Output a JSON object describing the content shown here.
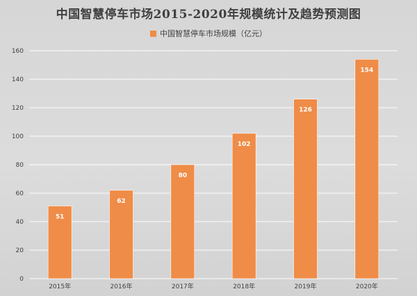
{
  "chart_data": {
    "type": "bar",
    "title": "中国智慧停车市场2015-2020年规模统计及趋势预测图",
    "categories": [
      "2015年",
      "2016年",
      "2017年",
      "2018年",
      "2019年",
      "2020年"
    ],
    "series": [
      {
        "name": "中国智慧停车市场规模（亿元）",
        "values": [
          51,
          62,
          80,
          102,
          126,
          154
        ],
        "color": "#ef8c47"
      }
    ],
    "ylim": [
      0,
      160
    ],
    "yticks": [
      0,
      20,
      40,
      60,
      80,
      100,
      120,
      140,
      160
    ],
    "grid": true,
    "legend_position": "top-center",
    "data_labels": true
  }
}
